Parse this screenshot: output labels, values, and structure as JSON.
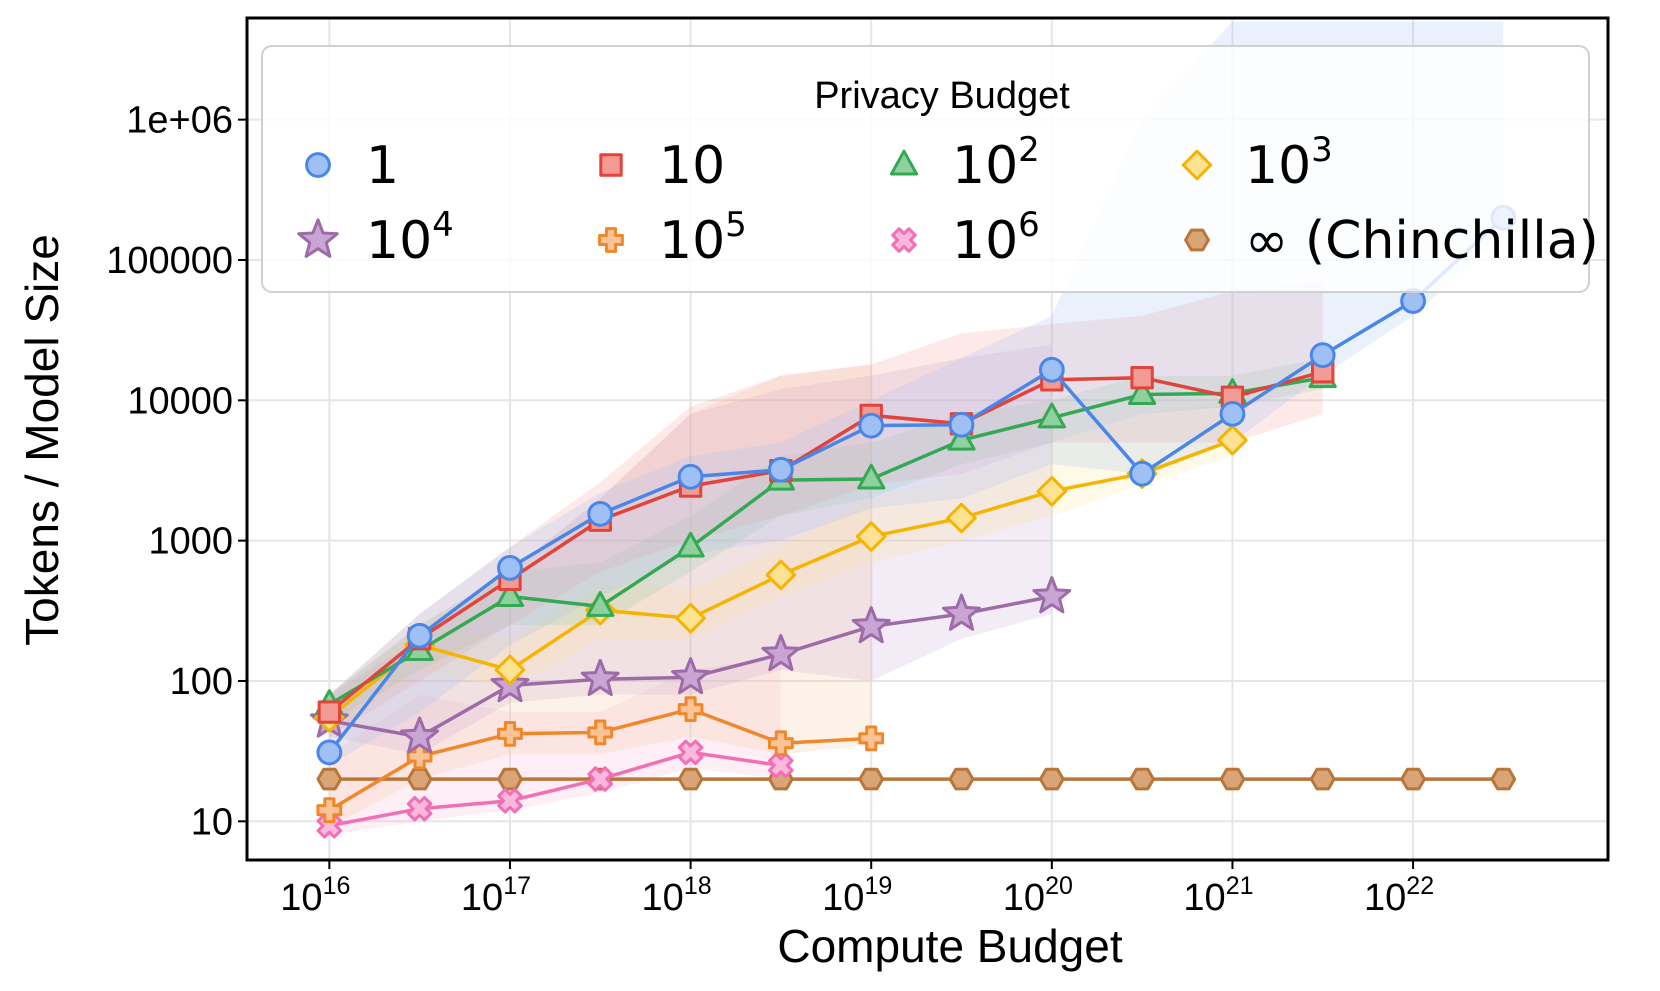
{
  "chart_data": {
    "type": "line",
    "xlabel": "Compute Budget",
    "ylabel": "Tokens / Model Size",
    "xscale": "log",
    "yscale": "log",
    "xlim": [
      3500000000000000.0,
      1.2e+23
    ],
    "ylim": [
      5.3,
      5300000.0
    ],
    "grid": true,
    "x_ticks": [
      {
        "value": 1e+16,
        "base": "10",
        "exp": "16"
      },
      {
        "value": 1e+17,
        "base": "10",
        "exp": "17"
      },
      {
        "value": 1e+18,
        "base": "10",
        "exp": "18"
      },
      {
        "value": 1e+19,
        "base": "10",
        "exp": "19"
      },
      {
        "value": 1e+20,
        "base": "10",
        "exp": "20"
      },
      {
        "value": 1e+21,
        "base": "10",
        "exp": "21"
      },
      {
        "value": 1e+22,
        "base": "10",
        "exp": "22"
      }
    ],
    "y_ticks": [
      {
        "value": 10,
        "label": "10"
      },
      {
        "value": 100,
        "label": "100"
      },
      {
        "value": 1000,
        "label": "1000"
      },
      {
        "value": 10000,
        "label": "10000"
      },
      {
        "value": 100000,
        "label": "100000"
      },
      {
        "value": 1000000,
        "label": "1e+06"
      }
    ],
    "legend": {
      "title": "Privacy Budget",
      "placement": "top",
      "columns": 4
    },
    "series": [
      {
        "name": "1",
        "label_base": "1",
        "label_exp": "",
        "marker": "circle",
        "color": "#4a86e8",
        "fill": "#9ec0f5",
        "x": [
          1e+16,
          3.16e+16,
          1e+17,
          3.16e+17,
          1e+18,
          3.16e+18,
          1e+19,
          3.16e+19,
          1e+20,
          3.16e+20,
          1e+21,
          3.16e+21,
          1e+22,
          3.16e+22
        ],
        "y": [
          31,
          210,
          640,
          1550,
          2850,
          3200,
          6600,
          6700,
          16500,
          3000,
          8000,
          21000,
          51000,
          200000
        ],
        "band": {
          "x": [
            1e+16,
            3.16e+16,
            1e+17,
            3.16e+17,
            1e+18,
            3.16e+18,
            1e+19,
            3.16e+19,
            1e+20,
            3.16e+20,
            1e+21,
            3.16e+21,
            1e+22,
            3.16e+22
          ],
          "low": [
            25,
            60,
            180,
            400,
            800,
            1000,
            1700,
            2000,
            3500,
            3000,
            5000,
            15000,
            40000,
            150000
          ],
          "high": [
            80,
            300,
            900,
            2200,
            4000,
            5000,
            10000,
            20000,
            40000,
            1000000,
            5000000,
            5000000,
            5000000,
            5000000
          ]
        }
      },
      {
        "name": "10",
        "label_base": "10",
        "label_exp": "",
        "marker": "square",
        "color": "#e0443a",
        "fill": "#f29b94",
        "x": [
          1e+16,
          3.16e+16,
          1e+17,
          3.16e+17,
          1e+18,
          3.16e+18,
          1e+19,
          3.16e+19,
          1e+20,
          3.16e+20,
          1e+21,
          3.16e+21
        ],
        "y": [
          60,
          200,
          530,
          1400,
          2450,
          3150,
          7800,
          6800,
          14000,
          14500,
          10500,
          16000
        ],
        "band": {
          "x": [
            1e+16,
            3.16e+16,
            1e+17,
            3.16e+17,
            1e+18,
            3.16e+18,
            1e+19,
            3.16e+19,
            1e+20,
            3.16e+20,
            1e+21,
            3.16e+21
          ],
          "low": [
            40,
            100,
            250,
            600,
            1000,
            1500,
            2500,
            3000,
            5000,
            5000,
            5000,
            8000
          ],
          "high": [
            80,
            300,
            900,
            2600,
            9000,
            15000,
            18000,
            30000,
            35000,
            40000,
            60000,
            70000
          ]
        }
      },
      {
        "name": "10^2",
        "label_base": "10",
        "label_exp": "2",
        "marker": "triangle",
        "color": "#34a853",
        "fill": "#8fd19e",
        "x": [
          1e+16,
          3.16e+16,
          1e+17,
          3.16e+17,
          1e+18,
          3.16e+18,
          1e+19,
          3.16e+19,
          1e+20,
          3.16e+20,
          1e+21,
          3.16e+21
        ],
        "y": [
          68,
          165,
          400,
          340,
          900,
          2700,
          2750,
          5200,
          7500,
          11000,
          11200,
          14500
        ],
        "band": {
          "x": [
            1e+16,
            3.16e+16,
            1e+17,
            3.16e+17,
            1e+18,
            3.16e+18,
            1e+19,
            3.16e+19,
            1e+20,
            3.16e+20,
            1e+21,
            3.16e+21
          ],
          "low": [
            50,
            120,
            250,
            250,
            600,
            1500,
            2000,
            3500,
            5000,
            8000,
            9000,
            12000
          ],
          "high": [
            80,
            250,
            600,
            700,
            1500,
            4000,
            5000,
            8000,
            10000,
            15000,
            15000,
            20000
          ]
        }
      },
      {
        "name": "10^3",
        "label_base": "10",
        "label_exp": "3",
        "marker": "diamond",
        "color": "#f4b400",
        "fill": "#fde293",
        "x": [
          1e+16,
          3.16e+16,
          1e+17,
          3.16e+17,
          1e+18,
          3.16e+18,
          1e+19,
          3.16e+19,
          1e+20,
          3.16e+20,
          1e+21
        ],
        "y": [
          55,
          180,
          120,
          320,
          280,
          570,
          1070,
          1450,
          2250,
          3000,
          5200
        ],
        "band": {
          "x": [
            1e+16,
            3.16e+16,
            1e+17,
            3.16e+17,
            1e+18,
            3.16e+18,
            1e+19,
            3.16e+19,
            1e+20,
            3.16e+20,
            1e+21
          ],
          "low": [
            40,
            120,
            90,
            200,
            200,
            400,
            700,
            1000,
            1500,
            2500,
            4000
          ],
          "high": [
            70,
            250,
            200,
            500,
            450,
            900,
            2000,
            3000,
            5000,
            8000,
            10000
          ]
        }
      },
      {
        "name": "10^4",
        "label_base": "10",
        "label_exp": "4",
        "marker": "star",
        "color": "#9c6ba8",
        "fill": "#c9a5d3",
        "x": [
          1e+16,
          3.16e+16,
          1e+17,
          3.16e+17,
          1e+18,
          3.16e+18,
          1e+19,
          3.16e+19,
          1e+20
        ],
        "y": [
          52,
          40,
          93,
          103,
          106,
          155,
          245,
          300,
          400
        ],
        "band": {
          "x": [
            1e+16,
            3.16e+16,
            1e+17,
            3.16e+17,
            1e+18,
            3.16e+18,
            1e+19,
            3.16e+19,
            1e+20
          ],
          "low": [
            40,
            30,
            70,
            80,
            80,
            120,
            100,
            200,
            300
          ],
          "high": [
            80,
            200,
            600,
            2000,
            8000,
            12000,
            15000,
            20000,
            25000
          ]
        }
      },
      {
        "name": "10^5",
        "label_base": "10",
        "label_exp": "5",
        "marker": "plus",
        "color": "#f0872a",
        "fill": "#f8c396",
        "x": [
          1e+16,
          3.16e+16,
          1e+17,
          3.16e+17,
          1e+18,
          3.16e+18,
          1e+19
        ],
        "y": [
          12,
          29,
          42,
          43,
          63,
          36,
          39
        ],
        "band": {
          "x": [
            1e+16,
            3.16e+16,
            1e+17,
            3.16e+17,
            1e+18,
            3.16e+18,
            1e+19
          ],
          "low": [
            9,
            20,
            30,
            30,
            40,
            30,
            35
          ],
          "high": [
            80,
            250,
            600,
            2000,
            8000,
            15000,
            18000
          ]
        }
      },
      {
        "name": "10^6",
        "label_base": "10",
        "label_exp": "6",
        "marker": "x",
        "color": "#f26fb5",
        "fill": "#f9b8dc",
        "x": [
          1e+16,
          3.16e+16,
          1e+17,
          3.16e+17,
          1e+18,
          3.16e+18
        ],
        "y": [
          9.3,
          12.3,
          14,
          20,
          31,
          25
        ],
        "band": {
          "x": [
            1e+16,
            3.16e+16,
            1e+17,
            3.16e+17,
            1e+18,
            3.16e+18
          ],
          "low": [
            8,
            10,
            12,
            16,
            24,
            20
          ],
          "high": [
            30,
            80,
            60,
            60,
            120,
            150
          ]
        }
      },
      {
        "name": "∞ (Chinchilla)",
        "label_base": "∞ (Chinchilla)",
        "label_exp": "",
        "marker": "hexagon",
        "color": "#b8763a",
        "fill": "#d9a577",
        "x": [
          1e+16,
          3.16e+16,
          1e+17,
          3.16e+17,
          1e+18,
          3.16e+18,
          1e+19,
          3.16e+19,
          1e+20,
          3.16e+20,
          1e+21,
          3.16e+21,
          1e+22,
          3.16e+22
        ],
        "y": [
          20,
          20,
          20,
          20,
          20,
          20,
          20,
          20,
          20,
          20,
          20,
          20,
          20,
          20
        ]
      }
    ]
  }
}
